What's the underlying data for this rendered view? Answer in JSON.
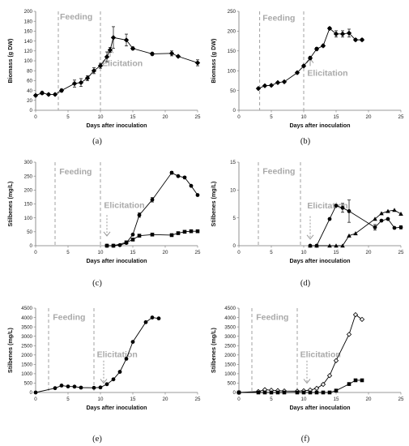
{
  "chart_data": [
    {
      "type": "line",
      "caption": "(a)",
      "xlabel": "Days after inoculation",
      "ylabel": "Biomass (g DW)",
      "xlim": [
        0,
        25
      ],
      "ylim": [
        0,
        200
      ],
      "xticks": [
        0,
        5,
        10,
        15,
        20,
        25
      ],
      "yticks": [
        0,
        20,
        40,
        60,
        80,
        100,
        120,
        140,
        160,
        180,
        200
      ],
      "vlines": [
        3.5,
        10
      ],
      "annotations": [
        {
          "text": "Feeding",
          "x": 3.5,
          "y": 190
        },
        {
          "text": "Elicitation",
          "x": 10,
          "y": 96
        }
      ],
      "arrow": {
        "x": 11.5,
        "y_from": 108,
        "y_to": 124,
        "direction": "up"
      },
      "series": [
        {
          "marker": "diamond",
          "x": [
            0,
            1,
            2,
            3,
            4,
            6,
            7,
            8,
            9,
            10,
            11,
            11.5,
            12,
            14,
            15,
            18,
            21,
            22,
            25
          ],
          "y": [
            30,
            35,
            32,
            32,
            40,
            54,
            56,
            65,
            80,
            90,
            108,
            122,
            147,
            142,
            125,
            114,
            115,
            109,
            96
          ],
          "err": [
            2,
            3,
            2,
            2,
            3,
            7,
            8,
            5,
            6,
            5,
            10,
            5,
            22,
            12,
            3,
            3,
            5,
            2,
            6
          ]
        }
      ]
    },
    {
      "type": "line",
      "caption": "(b)",
      "xlabel": "Days after inoculation",
      "ylabel": "Biomass (g DW)",
      "xlim": [
        0,
        25
      ],
      "ylim": [
        0,
        250
      ],
      "xticks": [
        0,
        5,
        10,
        15,
        20,
        25
      ],
      "yticks": [
        0,
        50,
        100,
        150,
        200,
        250
      ],
      "vlines": [
        3.2,
        10
      ],
      "annotations": [
        {
          "text": "Feeding",
          "x": 3.4,
          "y": 235
        },
        {
          "text": "Elicitation",
          "x": 10.3,
          "y": 95
        }
      ],
      "arrow": {
        "x": 11,
        "y_from": 112,
        "y_to": 130,
        "direction": "up"
      },
      "series": [
        {
          "marker": "diamond",
          "x": [
            3,
            4,
            5,
            6,
            7,
            9,
            10,
            11,
            12,
            13,
            14,
            15,
            16,
            17,
            18,
            19
          ],
          "y": [
            55,
            62,
            63,
            70,
            72,
            95,
            112,
            132,
            155,
            163,
            207,
            193,
            193,
            195,
            178,
            178
          ],
          "err": [
            2,
            2,
            2,
            2,
            2,
            3,
            3,
            4,
            4,
            3,
            3,
            8,
            8,
            10,
            3,
            3
          ]
        }
      ]
    },
    {
      "type": "line",
      "caption": "(c)",
      "xlabel": "Days after inoculation",
      "ylabel": "Stilbenes (mg/L)",
      "xlim": [
        0,
        25
      ],
      "ylim": [
        0,
        300
      ],
      "xticks": [
        0,
        5,
        10,
        15,
        20,
        25
      ],
      "yticks": [
        0,
        50,
        100,
        150,
        200,
        250,
        300
      ],
      "vlines": [
        3,
        10
      ],
      "annotations": [
        {
          "text": "Feeding",
          "x": 3.4,
          "y": 268
        },
        {
          "text": "Elicitation",
          "x": 10.3,
          "y": 147
        }
      ],
      "arrow": {
        "x": 11,
        "y_from": 110,
        "y_to": 35,
        "direction": "down"
      },
      "series": [
        {
          "marker": "circle",
          "x": [
            11,
            12,
            13,
            14,
            15,
            16,
            18,
            21,
            22,
            23,
            24,
            25
          ],
          "y": [
            0,
            0,
            2,
            10,
            40,
            110,
            165,
            262,
            250,
            245,
            215,
            182
          ],
          "err": [
            0,
            0,
            0,
            0,
            0,
            8,
            8,
            5,
            0,
            0,
            0,
            0
          ]
        },
        {
          "marker": "square",
          "x": [
            11,
            12,
            14,
            15,
            16,
            18,
            21,
            22,
            23,
            24,
            25
          ],
          "y": [
            0,
            0,
            12,
            22,
            36,
            40,
            38,
            45,
            50,
            52,
            52
          ],
          "err": [
            0,
            0,
            0,
            0,
            0,
            0,
            0,
            0,
            0,
            0,
            0
          ]
        }
      ]
    },
    {
      "type": "line",
      "caption": "(d)",
      "xlabel": "Days after inoculation",
      "ylabel": "Stilbenes (mg/L)",
      "xlim": [
        0,
        25
      ],
      "ylim": [
        0,
        15
      ],
      "xticks": [
        0,
        5,
        10,
        15,
        20,
        25
      ],
      "yticks": [
        0,
        5,
        10,
        15
      ],
      "vlines": [
        3,
        9.5
      ],
      "annotations": [
        {
          "text": "Feeding",
          "x": 3.4,
          "y": 13.5
        },
        {
          "text": "Elicitation",
          "x": 10.3,
          "y": 7.3
        }
      ],
      "arrow": {
        "x": 11,
        "y_from": 5.3,
        "y_to": 1.2,
        "direction": "down"
      },
      "series": [
        {
          "marker": "circle",
          "x": [
            11,
            12,
            14,
            15,
            16,
            17,
            21,
            22,
            23,
            24,
            25
          ],
          "y": [
            0,
            0,
            4.8,
            7.2,
            6.8,
            6.2,
            3.3,
            4.5,
            4.8,
            3.2,
            3.3
          ],
          "err": [
            0,
            0,
            0,
            0,
            0.8,
            2,
            0.5,
            0,
            0,
            0,
            0.3
          ]
        },
        {
          "marker": "triangle",
          "x": [
            11,
            12,
            14,
            15,
            16,
            17,
            18,
            21,
            22,
            23,
            24,
            25
          ],
          "y": [
            0,
            0,
            0,
            0,
            0,
            1.8,
            2.2,
            4.8,
            5.8,
            6.2,
            6.4,
            5.7
          ],
          "err": [
            0,
            0,
            0,
            0,
            0,
            0,
            0,
            0,
            0,
            0,
            0,
            0
          ]
        }
      ]
    },
    {
      "type": "line",
      "caption": "(e)",
      "xlabel": "Days after inoculation",
      "ylabel": "Stilbenes (mg/L)",
      "xlim": [
        0,
        25
      ],
      "ylim": [
        0,
        4500
      ],
      "xticks": [
        0,
        5,
        10,
        15,
        20,
        25
      ],
      "yticks": [
        0,
        500,
        1000,
        1500,
        2000,
        2500,
        3000,
        3500,
        4000,
        4500
      ],
      "vlines": [
        2,
        9
      ],
      "annotations": [
        {
          "text": "Feeding",
          "x": 2.4,
          "y": 4050
        },
        {
          "text": "Elicitation",
          "x": 9.2,
          "y": 2050
        }
      ],
      "arrow": {
        "x": 10.5,
        "y_from": 1700,
        "y_to": 500,
        "direction": "down"
      },
      "series": [
        {
          "marker": "circle",
          "x": [
            0,
            3,
            4,
            5,
            6,
            7,
            9,
            10,
            11,
            12,
            13,
            14,
            15,
            17,
            18,
            19
          ],
          "y": [
            0,
            230,
            370,
            320,
            310,
            260,
            250,
            270,
            440,
            700,
            1100,
            1800,
            2700,
            3750,
            4000,
            3950
          ],
          "err": [
            0,
            0,
            0,
            0,
            0,
            0,
            0,
            0,
            0,
            0,
            0,
            0,
            0,
            0,
            0,
            0
          ]
        }
      ]
    },
    {
      "type": "line",
      "caption": "(f)",
      "xlabel": "Days after inoculation",
      "ylabel": "Stilbenes (mg/L)",
      "xlim": [
        0,
        25
      ],
      "ylim": [
        0,
        4500
      ],
      "xticks": [
        0,
        5,
        10,
        15,
        20,
        25
      ],
      "yticks": [
        0,
        500,
        1000,
        1500,
        2000,
        2500,
        3000,
        3500,
        4000,
        4500
      ],
      "vlines": [
        2,
        9
      ],
      "annotations": [
        {
          "text": "Feeding",
          "x": 2.4,
          "y": 4050
        },
        {
          "text": "Elicitation",
          "x": 9.2,
          "y": 2050
        }
      ],
      "arrow": {
        "x": 10.5,
        "y_from": 1700,
        "y_to": 500,
        "direction": "down"
      },
      "series": [
        {
          "marker": "open-diamond",
          "x": [
            0,
            3,
            4,
            5,
            6,
            7,
            9,
            10,
            11,
            12,
            13,
            14,
            15,
            17,
            18,
            19
          ],
          "y": [
            0,
            50,
            150,
            120,
            100,
            80,
            70,
            90,
            130,
            220,
            430,
            900,
            1700,
            3100,
            4150,
            3900
          ],
          "err": [
            0,
            0,
            0,
            0,
            0,
            0,
            0,
            0,
            0,
            0,
            0,
            0,
            0,
            0,
            0,
            0
          ]
        },
        {
          "marker": "square",
          "x": [
            0,
            3,
            4,
            5,
            6,
            7,
            9,
            10,
            11,
            12,
            13,
            14,
            15,
            17,
            18,
            19
          ],
          "y": [
            0,
            0,
            0,
            0,
            0,
            0,
            0,
            0,
            0,
            0,
            0,
            0,
            100,
            450,
            650,
            650
          ],
          "err": [
            0,
            0,
            0,
            0,
            0,
            0,
            0,
            0,
            0,
            0,
            0,
            0,
            0,
            0,
            0,
            0
          ]
        }
      ]
    }
  ]
}
